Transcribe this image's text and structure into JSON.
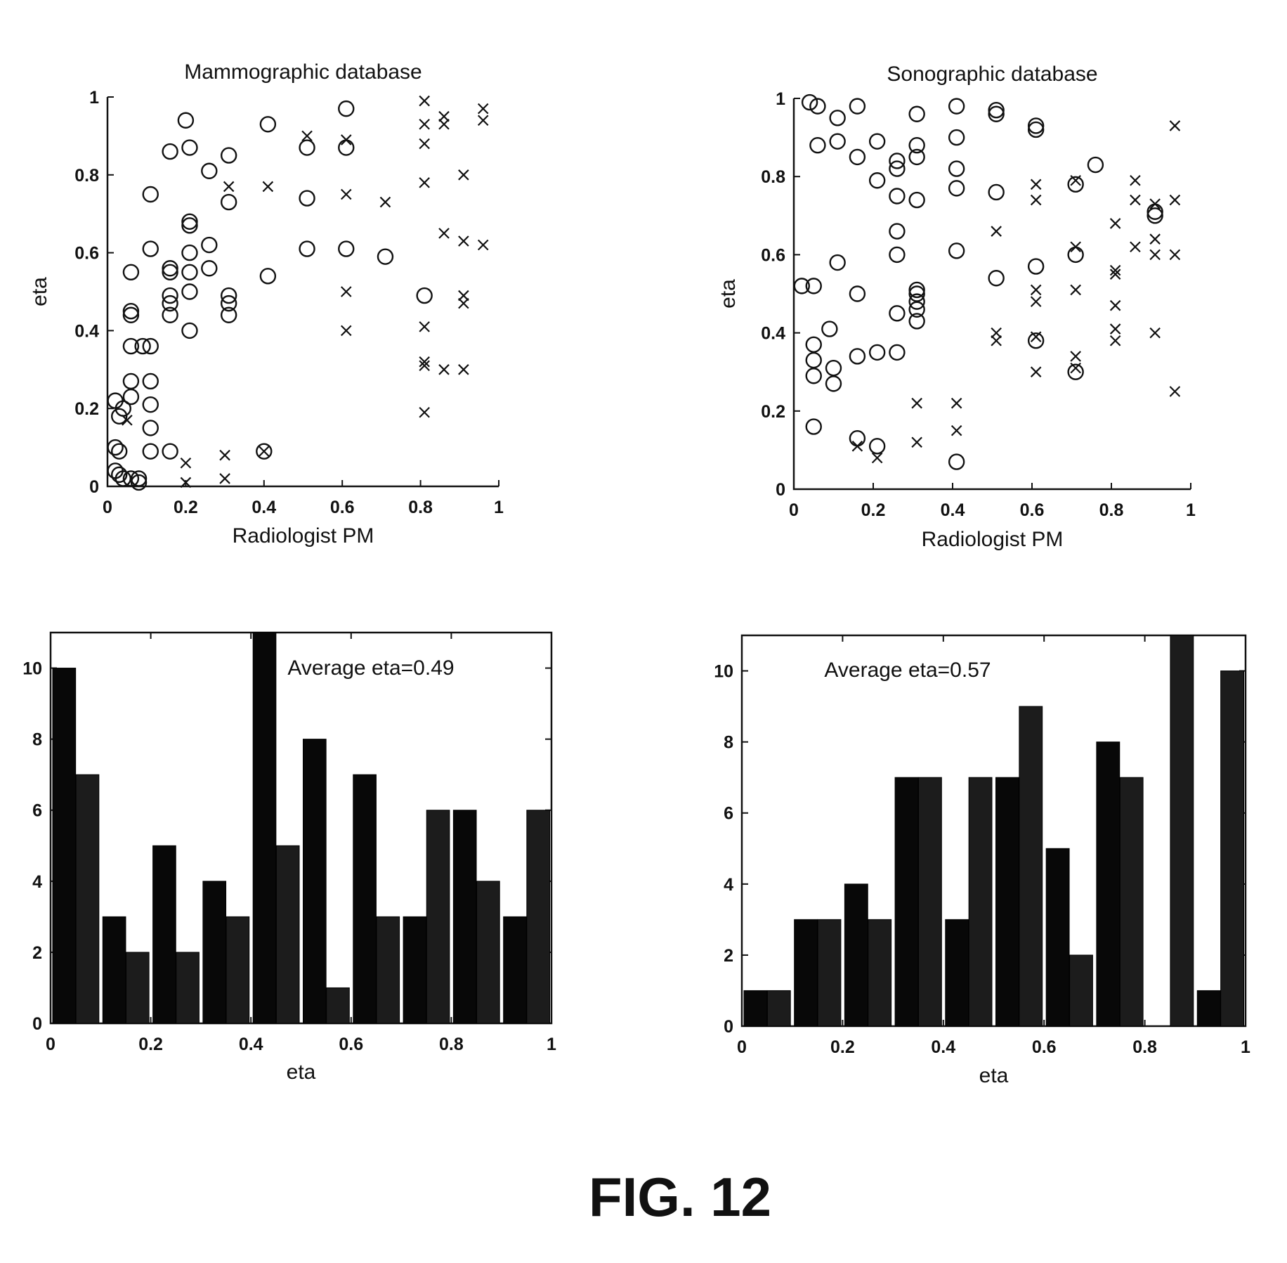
{
  "figure_label": "FIG. 12",
  "chart_data": [
    {
      "id": "p1",
      "type": "scatter",
      "title": "Mammographic database",
      "xlabel": "Radiologist PM",
      "ylabel": "eta",
      "xlim": [
        0,
        1
      ],
      "ylim": [
        0,
        1
      ],
      "xticks": [
        "0",
        "0.2",
        "0.4",
        "0.6",
        "0.8",
        "1"
      ],
      "yticks": [
        "0",
        "0.2",
        "0.4",
        "0.6",
        "0.8",
        "1"
      ],
      "box": false,
      "series": [
        {
          "marker": "circle",
          "points": [
            [
              0.2,
              0.94
            ],
            [
              0.16,
              0.86
            ],
            [
              0.21,
              0.87
            ],
            [
              0.26,
              0.81
            ],
            [
              0.31,
              0.85
            ],
            [
              0.41,
              0.93
            ],
            [
              0.61,
              0.97
            ],
            [
              0.51,
              0.87
            ],
            [
              0.61,
              0.87
            ],
            [
              0.11,
              0.75
            ],
            [
              0.31,
              0.73
            ],
            [
              0.51,
              0.74
            ],
            [
              0.21,
              0.68
            ],
            [
              0.21,
              0.67
            ],
            [
              0.11,
              0.61
            ],
            [
              0.21,
              0.6
            ],
            [
              0.26,
              0.62
            ],
            [
              0.51,
              0.61
            ],
            [
              0.61,
              0.61
            ],
            [
              0.71,
              0.59
            ],
            [
              0.06,
              0.55
            ],
            [
              0.16,
              0.56
            ],
            [
              0.16,
              0.55
            ],
            [
              0.21,
              0.55
            ],
            [
              0.26,
              0.56
            ],
            [
              0.41,
              0.54
            ],
            [
              0.21,
              0.5
            ],
            [
              0.16,
              0.49
            ],
            [
              0.16,
              0.47
            ],
            [
              0.31,
              0.49
            ],
            [
              0.31,
              0.47
            ],
            [
              0.06,
              0.45
            ],
            [
              0.06,
              0.44
            ],
            [
              0.16,
              0.44
            ],
            [
              0.31,
              0.44
            ],
            [
              0.21,
              0.4
            ],
            [
              0.81,
              0.49
            ],
            [
              0.06,
              0.36
            ],
            [
              0.09,
              0.36
            ],
            [
              0.11,
              0.36
            ],
            [
              0.06,
              0.27
            ],
            [
              0.11,
              0.27
            ],
            [
              0.06,
              0.23
            ],
            [
              0.02,
              0.22
            ],
            [
              0.04,
              0.2
            ],
            [
              0.11,
              0.21
            ],
            [
              0.03,
              0.18
            ],
            [
              0.11,
              0.15
            ],
            [
              0.02,
              0.1
            ],
            [
              0.03,
              0.09
            ],
            [
              0.11,
              0.09
            ],
            [
              0.16,
              0.09
            ],
            [
              0.4,
              0.09
            ],
            [
              0.02,
              0.04
            ],
            [
              0.03,
              0.03
            ],
            [
              0.04,
              0.02
            ],
            [
              0.06,
              0.02
            ],
            [
              0.08,
              0.02
            ],
            [
              0.08,
              0.01
            ]
          ]
        },
        {
          "marker": "x",
          "points": [
            [
              0.81,
              0.99
            ],
            [
              0.96,
              0.97
            ],
            [
              0.86,
              0.95
            ],
            [
              0.96,
              0.94
            ],
            [
              0.86,
              0.93
            ],
            [
              0.81,
              0.93
            ],
            [
              0.51,
              0.9
            ],
            [
              0.61,
              0.89
            ],
            [
              0.81,
              0.88
            ],
            [
              0.91,
              0.8
            ],
            [
              0.81,
              0.78
            ],
            [
              0.31,
              0.77
            ],
            [
              0.41,
              0.77
            ],
            [
              0.61,
              0.75
            ],
            [
              0.71,
              0.73
            ],
            [
              0.86,
              0.65
            ],
            [
              0.91,
              0.63
            ],
            [
              0.96,
              0.62
            ],
            [
              0.61,
              0.5
            ],
            [
              0.91,
              0.49
            ],
            [
              0.91,
              0.47
            ],
            [
              0.81,
              0.41
            ],
            [
              0.61,
              0.4
            ],
            [
              0.81,
              0.32
            ],
            [
              0.81,
              0.31
            ],
            [
              0.86,
              0.3
            ],
            [
              0.91,
              0.3
            ],
            [
              0.81,
              0.19
            ],
            [
              0.05,
              0.17
            ],
            [
              0.4,
              0.09
            ],
            [
              0.3,
              0.08
            ],
            [
              0.2,
              0.06
            ],
            [
              0.2,
              0.01
            ],
            [
              0.3,
              0.02
            ]
          ]
        }
      ]
    },
    {
      "id": "p2",
      "type": "scatter",
      "title": "Sonographic database",
      "xlabel": "Radiologist PM",
      "ylabel": "eta",
      "xlim": [
        0,
        1
      ],
      "ylim": [
        0,
        1
      ],
      "xticks": [
        "0",
        "0.2",
        "0.4",
        "0.6",
        "0.8",
        "1"
      ],
      "yticks": [
        "0",
        "0.2",
        "0.4",
        "0.6",
        "0.8",
        "1"
      ],
      "box": false,
      "series": [
        {
          "marker": "circle",
          "points": [
            [
              0.04,
              0.99
            ],
            [
              0.06,
              0.98
            ],
            [
              0.16,
              0.98
            ],
            [
              0.41,
              0.98
            ],
            [
              0.51,
              0.97
            ],
            [
              0.51,
              0.96
            ],
            [
              0.11,
              0.95
            ],
            [
              0.31,
              0.96
            ],
            [
              0.61,
              0.93
            ],
            [
              0.61,
              0.92
            ],
            [
              0.06,
              0.88
            ],
            [
              0.11,
              0.89
            ],
            [
              0.21,
              0.89
            ],
            [
              0.31,
              0.88
            ],
            [
              0.41,
              0.9
            ],
            [
              0.16,
              0.85
            ],
            [
              0.31,
              0.85
            ],
            [
              0.26,
              0.84
            ],
            [
              0.26,
              0.82
            ],
            [
              0.41,
              0.82
            ],
            [
              0.76,
              0.83
            ],
            [
              0.21,
              0.79
            ],
            [
              0.41,
              0.77
            ],
            [
              0.51,
              0.76
            ],
            [
              0.26,
              0.75
            ],
            [
              0.31,
              0.74
            ],
            [
              0.71,
              0.78
            ],
            [
              0.26,
              0.66
            ],
            [
              0.91,
              0.71
            ],
            [
              0.91,
              0.7
            ],
            [
              0.26,
              0.6
            ],
            [
              0.41,
              0.61
            ],
            [
              0.71,
              0.6
            ],
            [
              0.11,
              0.58
            ],
            [
              0.51,
              0.54
            ],
            [
              0.61,
              0.57
            ],
            [
              0.02,
              0.52
            ],
            [
              0.05,
              0.52
            ],
            [
              0.16,
              0.5
            ],
            [
              0.31,
              0.51
            ],
            [
              0.31,
              0.5
            ],
            [
              0.31,
              0.48
            ],
            [
              0.31,
              0.46
            ],
            [
              0.31,
              0.43
            ],
            [
              0.26,
              0.45
            ],
            [
              0.09,
              0.41
            ],
            [
              0.05,
              0.37
            ],
            [
              0.61,
              0.38
            ],
            [
              0.05,
              0.33
            ],
            [
              0.1,
              0.31
            ],
            [
              0.16,
              0.34
            ],
            [
              0.21,
              0.35
            ],
            [
              0.26,
              0.35
            ],
            [
              0.05,
              0.29
            ],
            [
              0.1,
              0.27
            ],
            [
              0.71,
              0.3
            ],
            [
              0.05,
              0.16
            ],
            [
              0.16,
              0.13
            ],
            [
              0.21,
              0.11
            ],
            [
              0.41,
              0.07
            ]
          ]
        },
        {
          "marker": "x",
          "points": [
            [
              0.96,
              0.93
            ],
            [
              0.86,
              0.79
            ],
            [
              0.61,
              0.78
            ],
            [
              0.71,
              0.79
            ],
            [
              0.86,
              0.74
            ],
            [
              0.61,
              0.74
            ],
            [
              0.91,
              0.73
            ],
            [
              0.96,
              0.74
            ],
            [
              0.81,
              0.68
            ],
            [
              0.51,
              0.66
            ],
            [
              0.91,
              0.64
            ],
            [
              0.86,
              0.62
            ],
            [
              0.71,
              0.62
            ],
            [
              0.91,
              0.6
            ],
            [
              0.96,
              0.6
            ],
            [
              0.81,
              0.56
            ],
            [
              0.81,
              0.55
            ],
            [
              0.61,
              0.51
            ],
            [
              0.61,
              0.48
            ],
            [
              0.71,
              0.51
            ],
            [
              0.81,
              0.47
            ],
            [
              0.81,
              0.41
            ],
            [
              0.81,
              0.38
            ],
            [
              0.91,
              0.4
            ],
            [
              0.51,
              0.4
            ],
            [
              0.51,
              0.38
            ],
            [
              0.61,
              0.39
            ],
            [
              0.71,
              0.34
            ],
            [
              0.71,
              0.31
            ],
            [
              0.61,
              0.3
            ],
            [
              0.96,
              0.25
            ],
            [
              0.31,
              0.22
            ],
            [
              0.41,
              0.22
            ],
            [
              0.41,
              0.15
            ],
            [
              0.31,
              0.12
            ],
            [
              0.16,
              0.11
            ],
            [
              0.21,
              0.08
            ]
          ]
        }
      ]
    },
    {
      "id": "h1",
      "type": "bar",
      "xlabel": "eta",
      "ylabel": "",
      "xlim": [
        0,
        1
      ],
      "ylim": [
        0,
        11
      ],
      "xticks": [
        "0",
        "0.2",
        "0.4",
        "0.6",
        "0.8",
        "1"
      ],
      "yticks": [
        "0",
        "2",
        "4",
        "6",
        "8",
        "10"
      ],
      "box": true,
      "annotation": "Average eta=0.49",
      "bin_centers": [
        0.05,
        0.15,
        0.25,
        0.35,
        0.45,
        0.55,
        0.65,
        0.75,
        0.85,
        0.95
      ],
      "series": [
        {
          "values": [
            10,
            3,
            5,
            4,
            11,
            8,
            7,
            3,
            6,
            3
          ],
          "color": "#080808"
        },
        {
          "values": [
            7,
            2,
            2,
            3,
            5,
            1,
            3,
            6,
            4,
            6
          ],
          "color": "#1c1c1c"
        }
      ]
    },
    {
      "id": "h2",
      "type": "bar",
      "xlabel": "eta",
      "ylabel": "",
      "xlim": [
        0,
        1
      ],
      "ylim": [
        0,
        11
      ],
      "xticks": [
        "0",
        "0.2",
        "0.4",
        "0.6",
        "0.8",
        "1"
      ],
      "yticks": [
        "0",
        "2",
        "4",
        "6",
        "8",
        "10"
      ],
      "box": true,
      "annotation": "Average eta=0.57",
      "bin_centers": [
        0.05,
        0.15,
        0.25,
        0.35,
        0.45,
        0.55,
        0.65,
        0.75,
        0.85,
        0.95
      ],
      "series": [
        {
          "values": [
            1,
            3,
            4,
            7,
            3,
            7,
            5,
            8,
            0,
            1
          ],
          "color": "#080808"
        },
        {
          "values": [
            1,
            3,
            3,
            7,
            7,
            9,
            2,
            7,
            11,
            10
          ],
          "color": "#1c1c1c"
        }
      ]
    }
  ]
}
